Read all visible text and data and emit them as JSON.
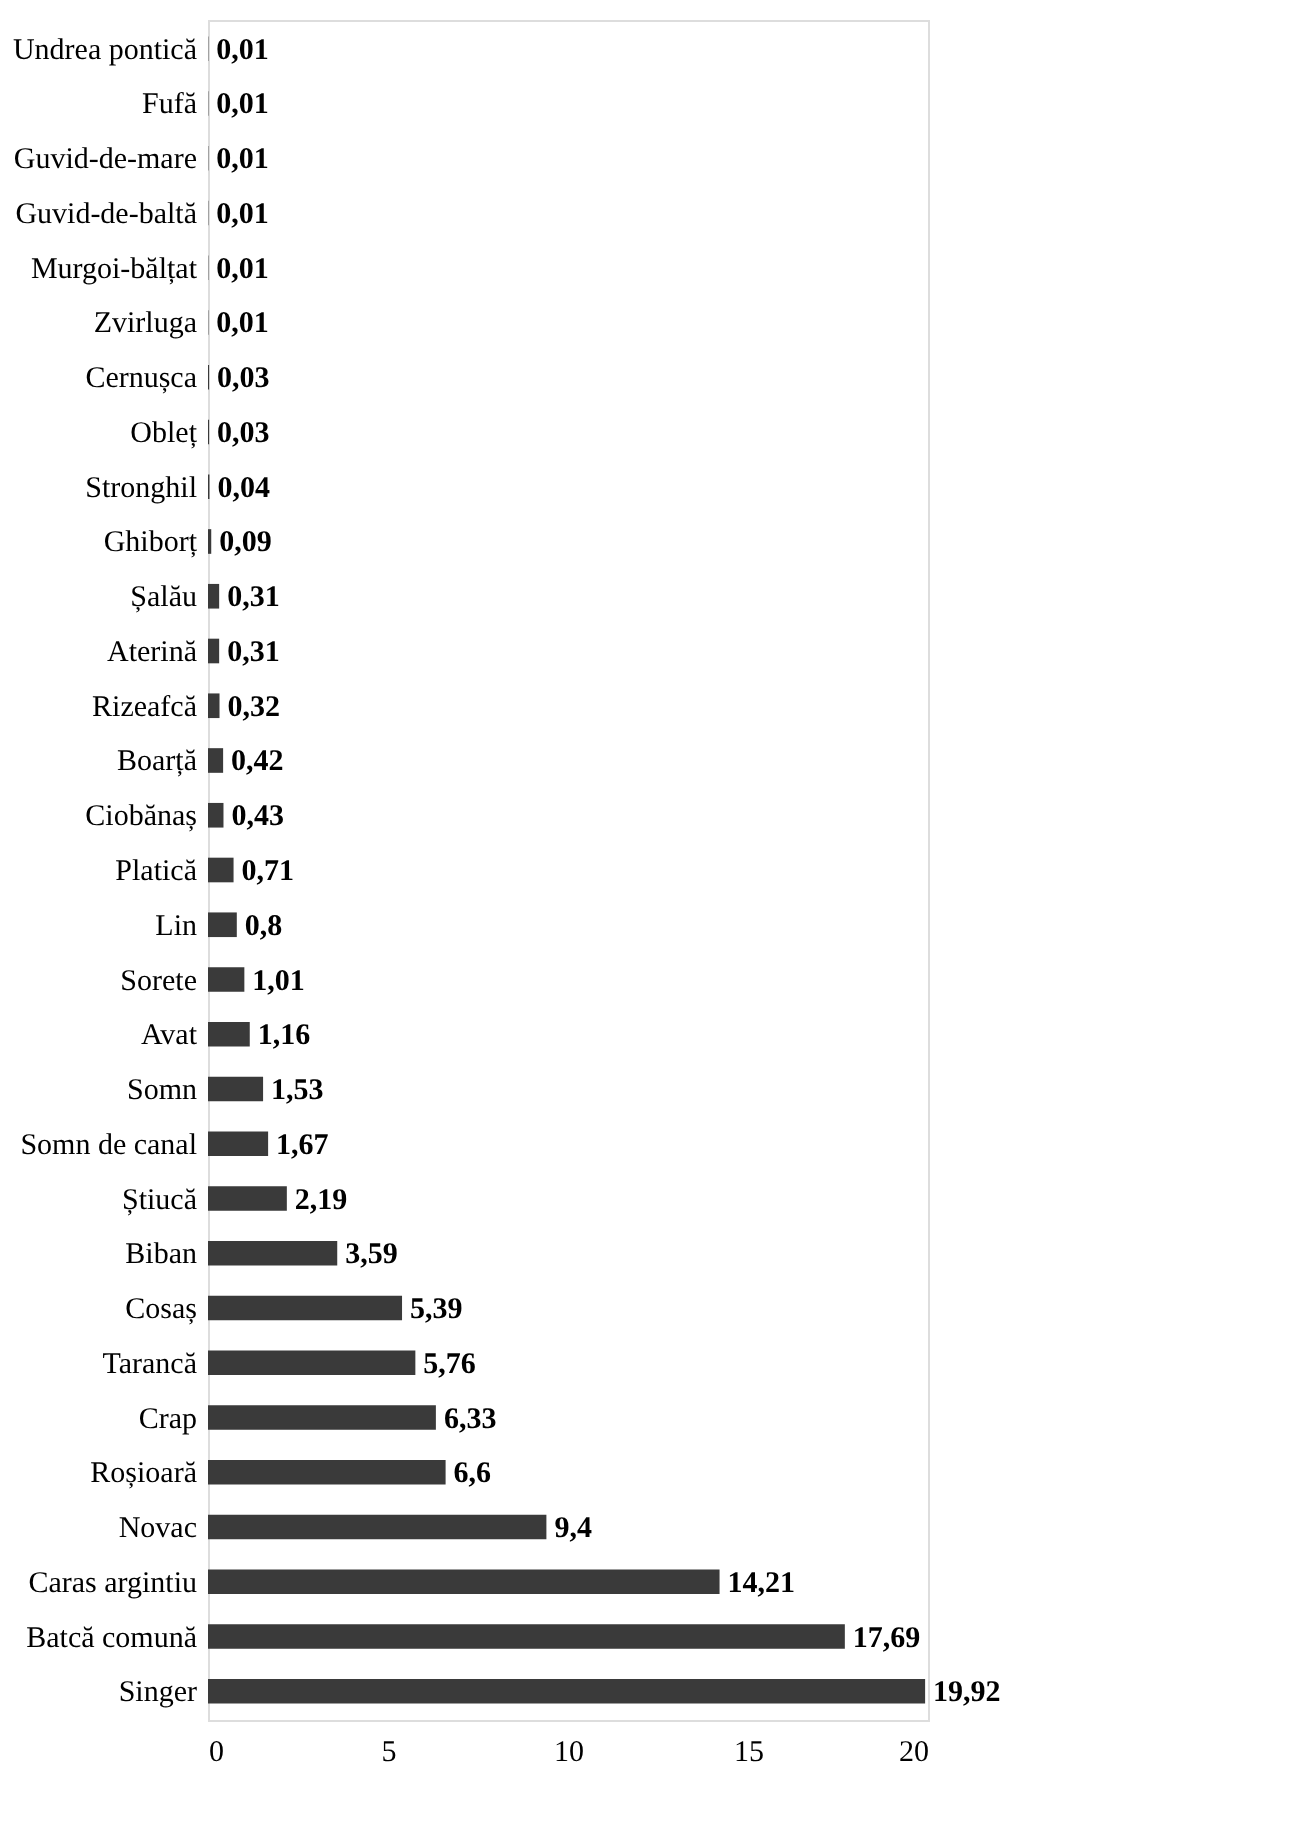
{
  "chart_data": {
    "type": "bar",
    "orientation": "horizontal",
    "categories": [
      "Undrea pontică",
      "Fufă",
      "Guvid-de-mare",
      "Guvid-de-baltă",
      "Murgoi-bălțat",
      "Zvirluga",
      "Cernușca",
      "Obleț",
      "Stronghil",
      "Ghiborț",
      "Șalău",
      "Aterină",
      "Rizeafcă",
      "Boarță",
      "Ciobănaș",
      "Platică",
      "Lin",
      "Sorete",
      "Avat",
      "Somn",
      "Somn de canal",
      "Știucă",
      "Biban",
      "Cosaș",
      "Tarancă",
      "Crap",
      "Roșioară",
      "Novac",
      "Caras argintiu",
      "Batcă comună",
      "Singer"
    ],
    "values": [
      0.01,
      0.01,
      0.01,
      0.01,
      0.01,
      0.01,
      0.03,
      0.03,
      0.04,
      0.09,
      0.31,
      0.31,
      0.32,
      0.42,
      0.43,
      0.71,
      0.8,
      1.01,
      1.16,
      1.53,
      1.67,
      2.19,
      3.59,
      5.39,
      5.76,
      6.33,
      6.6,
      9.4,
      14.21,
      17.69,
      19.92
    ],
    "value_labels": [
      "0,01",
      "0,01",
      "0,01",
      "0,01",
      "0,01",
      "0,01",
      "0,03",
      "0,03",
      "0,04",
      "0,09",
      "0,31",
      "0,31",
      "0,32",
      "0,42",
      "0,43",
      "0,71",
      "0,8",
      "1,01",
      "1,16",
      "1,53",
      "1,67",
      "2,19",
      "3,59",
      "5,39",
      "5,76",
      "6,33",
      "6,6",
      "9,4",
      "14,21",
      "17,69",
      "19,92"
    ],
    "color": "#3a3a3a",
    "xlim": [
      0,
      20
    ],
    "xticks": [
      0,
      5,
      10,
      15,
      20
    ],
    "grid": false
  }
}
